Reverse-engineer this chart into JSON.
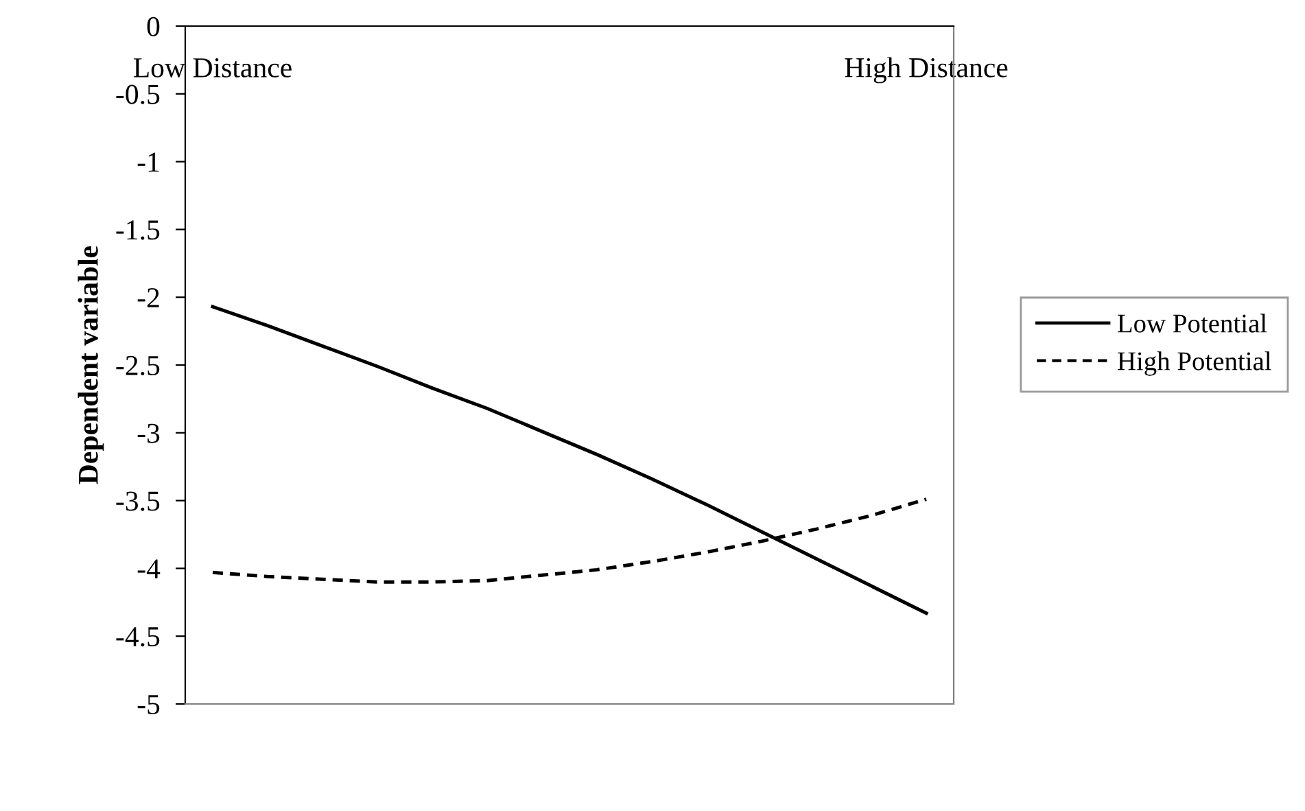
{
  "chart_data": {
    "type": "line",
    "ylabel": "Dependent variable",
    "categories": [
      "Low Distance",
      null,
      null,
      null,
      null,
      null,
      null,
      null,
      null,
      null,
      null,
      null,
      null,
      "High Distance"
    ],
    "series": [
      {
        "name": "Low Potential",
        "color": "#000000",
        "line_style": "solid",
        "values": [
          -2.07,
          -2.21,
          -2.36,
          -2.51,
          -2.67,
          -2.82,
          -2.99,
          -3.16,
          -3.34,
          -3.53,
          -3.73,
          -3.93,
          -4.13,
          -4.33
        ]
      },
      {
        "name": "High Potential",
        "color": "#000000",
        "line_style": "dashed",
        "values": [
          -4.03,
          -4.06,
          -4.08,
          -4.1,
          -4.1,
          -4.09,
          -4.05,
          -4.01,
          -3.95,
          -3.88,
          -3.8,
          -3.71,
          -3.61,
          -3.49
        ]
      }
    ],
    "ylim": [
      -5,
      0
    ],
    "yticks": [
      0,
      -0.5,
      -1,
      -1.5,
      -2,
      -2.5,
      -3,
      -3.5,
      -4,
      -4.5,
      -5
    ],
    "grid": false,
    "legend": "right",
    "marker": "none"
  }
}
